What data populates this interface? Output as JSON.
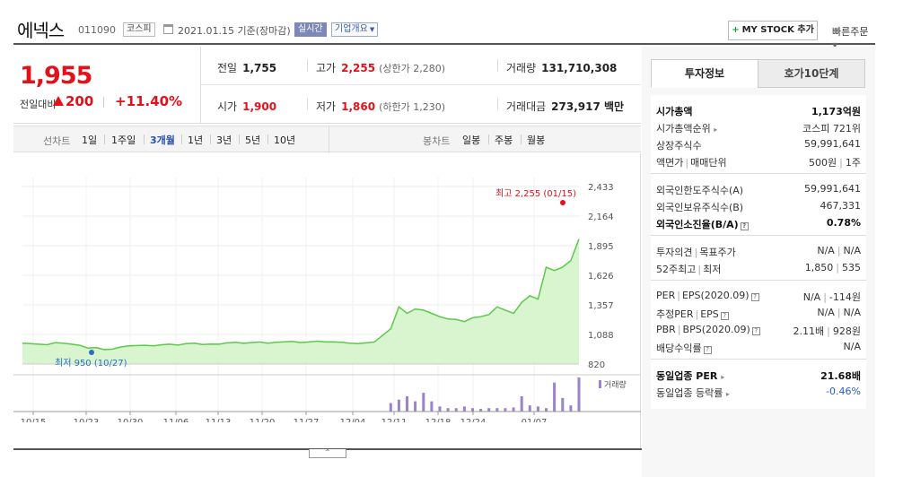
{
  "header": {
    "name": "에넥스",
    "code": "011090",
    "market": "코스피",
    "date": "2021.01.15 기준(장마감)",
    "realtime": "실시간",
    "overview": "기업개요",
    "mystock": "MY STOCK 추가",
    "quick_order": "빠른주문"
  },
  "price": {
    "current": "1,955",
    "prev_label": "전일대비",
    "change": "200",
    "rate": "+11.40%"
  },
  "stats": {
    "prev_close": {
      "label": "전일",
      "value": "1,755"
    },
    "high": {
      "label": "고가",
      "value": "2,255",
      "sub": "(상한가 2,280)"
    },
    "volume": {
      "label": "거래량",
      "value": "131,710,308"
    },
    "open": {
      "label": "시가",
      "value": "1,900"
    },
    "low": {
      "label": "저가",
      "value": "1,860",
      "sub": "(하한가 1,230)"
    },
    "amount": {
      "label": "거래대금",
      "value": "273,917 백만"
    }
  },
  "tabs": {
    "line_label": "선차트",
    "line_items": [
      "1일",
      "1주일",
      "3개월",
      "1년",
      "3년",
      "5년",
      "10년"
    ],
    "active": "3개월",
    "candle_label": "봉차트",
    "candle_items": [
      "일봉",
      "주봉",
      "월봉"
    ]
  },
  "chart_data": {
    "type": "area",
    "y_ticks": [
      "2,433",
      "2,164",
      "1,895",
      "1,626",
      "1,357",
      "1,088",
      "820"
    ],
    "ylim": [
      820,
      2433
    ],
    "x_ticks": [
      "10/15",
      "10/23",
      "10/30",
      "11/06",
      "11/13",
      "11/20",
      "11/27",
      "12/04",
      "12/11",
      "12/18",
      "12/24",
      "01/07"
    ],
    "high_label": "최고 2,255 (01/15)",
    "low_label": "최저 950 (10/27)",
    "volume_label": "거래량",
    "colors": {
      "line": "#5cc94a",
      "fill": "#d8f5cf",
      "volume": "#9b83c9",
      "high": "#e2111a",
      "low": "#2a6fc4"
    },
    "prices": [
      1010,
      1005,
      1000,
      995,
      1015,
      1010,
      1000,
      990,
      965,
      970,
      950,
      955,
      975,
      985,
      988,
      990,
      985,
      995,
      1000,
      992,
      1005,
      1010,
      998,
      1002,
      1000,
      1012,
      1018,
      1008,
      1015,
      1020,
      1010,
      1018,
      1022,
      1025,
      1015,
      1020,
      1028,
      1020,
      1022,
      1018,
      1010,
      1005,
      1012,
      1020,
      1080,
      1140,
      1340,
      1280,
      1320,
      1310,
      1280,
      1250,
      1230,
      1225,
      1205,
      1240,
      1250,
      1270,
      1340,
      1310,
      1280,
      1380,
      1440,
      1410,
      1700,
      1670,
      1700,
      1760,
      1955
    ],
    "volumes": [
      0,
      0,
      0,
      0,
      0,
      0,
      0,
      0,
      0,
      0,
      0,
      0,
      0,
      0,
      0,
      0,
      0,
      0,
      0,
      0,
      0,
      0,
      0,
      0,
      0,
      0,
      0,
      0,
      0,
      0,
      0,
      0,
      0,
      0,
      0,
      0,
      0,
      0,
      0,
      0,
      0,
      0,
      0,
      0,
      0,
      0.25,
      0.35,
      0.45,
      0.3,
      0.55,
      0.3,
      0.15,
      0.1,
      0.1,
      0.15,
      0.1,
      0.08,
      0.1,
      0.1,
      0.1,
      0.12,
      0.45,
      0.18,
      0.15,
      0.1,
      0.85,
      0.4,
      0.18,
      1.0
    ]
  },
  "side": {
    "tab1": "투자정보",
    "tab2": "호가10단계",
    "rows": [
      {
        "k": "시가총액",
        "v": "1,173억원",
        "bold": true
      },
      {
        "k": "시가총액순위",
        "v": "코스피 721위",
        "arrow": true
      },
      {
        "k": "상장주식수",
        "v": "59,991,641"
      },
      {
        "k": "액면가",
        "k2": "매매단위",
        "v": "500원",
        "v2": "1주"
      },
      {
        "k": "외국인한도주식수(A)",
        "v": "59,991,641"
      },
      {
        "k": "외국인보유주식수(B)",
        "v": "467,331"
      },
      {
        "k": "외국인소진율(B/A)",
        "v": "0.78%",
        "bold": true,
        "qm": true
      },
      {
        "k": "투자의견",
        "k2": "목표주가",
        "v": "N/A",
        "v2": "N/A"
      },
      {
        "k": "52주최고",
        "k2": "최저",
        "v": "1,850",
        "v2": "535"
      },
      {
        "k": "PER",
        "k2": "EPS(2020.09)",
        "v": "N/A",
        "v2": "-114원",
        "qm": true
      },
      {
        "k": "추정PER",
        "k2": "EPS",
        "v": "N/A",
        "v2": "N/A",
        "qm": true
      },
      {
        "k": "PBR",
        "k2": "BPS(2020.09)",
        "v": "2.11배",
        "v2": "928원",
        "qm": true
      },
      {
        "k": "배당수익률",
        "v": "N/A",
        "qm": true
      },
      {
        "k": "동일업종 PER",
        "v": "21.68배",
        "bold": true,
        "arrow": true
      },
      {
        "k": "동일업종 등락률",
        "v": "-0.46%",
        "arrow": true,
        "blue": true
      }
    ]
  }
}
